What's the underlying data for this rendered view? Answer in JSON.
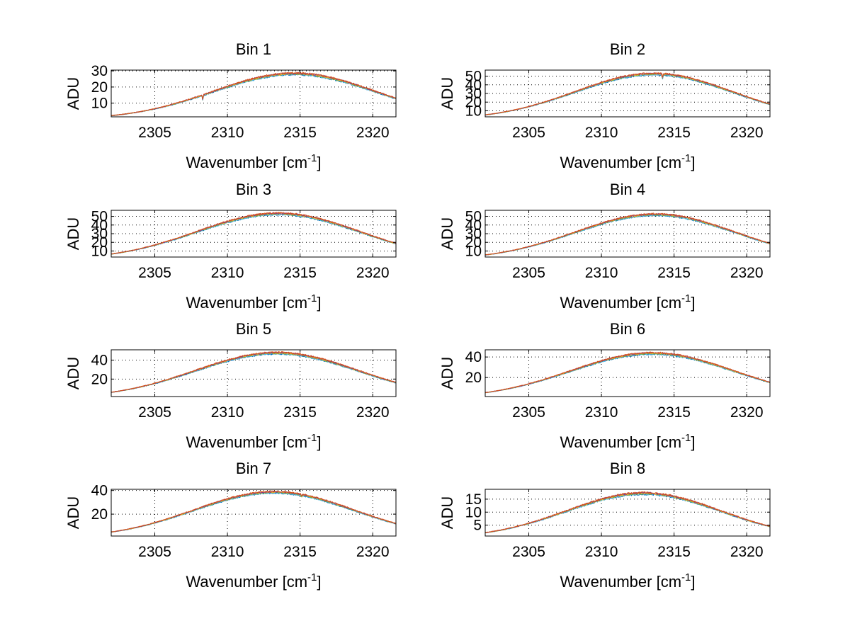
{
  "figure": {
    "colors": [
      "#0072BD",
      "#4DBEEE",
      "#77AC30",
      "#EDB120",
      "#7E2F8E",
      "#D95319"
    ]
  },
  "chart_data": [
    {
      "type": "line",
      "title": "Bin 1",
      "xlabel": "Wavenumber [cm",
      "xlabel_sup": "-1",
      "xlabel_end": "]",
      "ylabel": "ADU",
      "xlim": [
        2302,
        2321.6
      ],
      "ylim": [
        1.5,
        30.5
      ],
      "xticks": [
        2305,
        2310,
        2315,
        2320
      ],
      "yticks": [
        10,
        20,
        30
      ],
      "curve": {
        "x_peak": 2314.6,
        "peak": 28.2,
        "sigma": 5.6,
        "base": 0,
        "noise": 0.55,
        "dips": [
          [
            2308.3,
            -3.0
          ]
        ]
      },
      "series_count": 6
    },
    {
      "type": "line",
      "title": "Bin 2",
      "xlabel": "Wavenumber [cm",
      "xlabel_sup": "-1",
      "xlabel_end": "]",
      "ylabel": "ADU",
      "xlim": [
        2302,
        2321.6
      ],
      "ylim": [
        3,
        57
      ],
      "xticks": [
        2305,
        2310,
        2315,
        2320
      ],
      "yticks": [
        10,
        20,
        30,
        40,
        50
      ],
      "curve": {
        "x_peak": 2313.6,
        "peak": 52.5,
        "sigma": 5.4,
        "base": 0,
        "noise": 0.8,
        "dips": [
          [
            2314.2,
            -5.0
          ]
        ]
      },
      "series_count": 6
    },
    {
      "type": "line",
      "title": "Bin 3",
      "xlabel": "Wavenumber [cm",
      "xlabel_sup": "-1",
      "xlabel_end": "]",
      "ylabel": "ADU",
      "xlim": [
        2302,
        2321.6
      ],
      "ylim": [
        3,
        57
      ],
      "xticks": [
        2305,
        2310,
        2315,
        2320
      ],
      "yticks": [
        10,
        20,
        30,
        40,
        50
      ],
      "curve": {
        "x_peak": 2313.5,
        "peak": 53.0,
        "sigma": 5.6,
        "base": 0,
        "noise": 0.9,
        "dips": []
      },
      "series_count": 6
    },
    {
      "type": "line",
      "title": "Bin 4",
      "xlabel": "Wavenumber [cm",
      "xlabel_sup": "-1",
      "xlabel_end": "]",
      "ylabel": "ADU",
      "xlim": [
        2302,
        2321.6
      ],
      "ylim": [
        3,
        57
      ],
      "xticks": [
        2305,
        2310,
        2315,
        2320
      ],
      "yticks": [
        10,
        20,
        30,
        40,
        50
      ],
      "curve": {
        "x_peak": 2313.7,
        "peak": 52.0,
        "sigma": 5.5,
        "base": 0,
        "noise": 0.8,
        "dips": []
      },
      "series_count": 6
    },
    {
      "type": "line",
      "title": "Bin 5",
      "xlabel": "Wavenumber [cm",
      "xlabel_sup": "-1",
      "xlabel_end": "]",
      "ylabel": "ADU",
      "xlim": [
        2302,
        2321.6
      ],
      "ylim": [
        1.5,
        51
      ],
      "xticks": [
        2305,
        2310,
        2315,
        2320
      ],
      "yticks": [
        20,
        40
      ],
      "curve": {
        "x_peak": 2313.4,
        "peak": 47.5,
        "sigma": 5.6,
        "base": 0,
        "noise": 0.8,
        "dips": []
      },
      "series_count": 6
    },
    {
      "type": "line",
      "title": "Bin 6",
      "xlabel": "Wavenumber [cm",
      "xlabel_sup": "-1",
      "xlabel_end": "]",
      "ylabel": "ADU",
      "xlim": [
        2302,
        2321.6
      ],
      "ylim": [
        1.5,
        47
      ],
      "xticks": [
        2305,
        2310,
        2315,
        2320
      ],
      "yticks": [
        20,
        40
      ],
      "curve": {
        "x_peak": 2313.5,
        "peak": 43.5,
        "sigma": 5.6,
        "base": 0,
        "noise": 0.7,
        "dips": []
      },
      "series_count": 6
    },
    {
      "type": "line",
      "title": "Bin 7",
      "xlabel": "Wavenumber [cm",
      "xlabel_sup": "-1",
      "xlabel_end": "]",
      "ylabel": "ADU",
      "xlim": [
        2302,
        2321.6
      ],
      "ylim": [
        1.5,
        41
      ],
      "xticks": [
        2305,
        2310,
        2315,
        2320
      ],
      "yticks": [
        20,
        40
      ],
      "curve": {
        "x_peak": 2313.2,
        "peak": 38.5,
        "sigma": 5.5,
        "base": 0,
        "noise": 0.6,
        "dips": [
          [
            2315.1,
            -1.5
          ]
        ]
      },
      "series_count": 6
    },
    {
      "type": "line",
      "title": "Bin 8",
      "xlabel": "Wavenumber [cm",
      "xlabel_sup": "-1",
      "xlabel_end": "]",
      "ylabel": "ADU",
      "xlim": [
        2302,
        2321.6
      ],
      "ylim": [
        0.8,
        18.8
      ],
      "xticks": [
        2305,
        2310,
        2315,
        2320
      ],
      "yticks": [
        5,
        10,
        15
      ],
      "curve": {
        "x_peak": 2312.9,
        "peak": 17.2,
        "sigma": 5.3,
        "base": 0,
        "noise": 0.35,
        "dips": []
      },
      "series_count": 6
    }
  ]
}
